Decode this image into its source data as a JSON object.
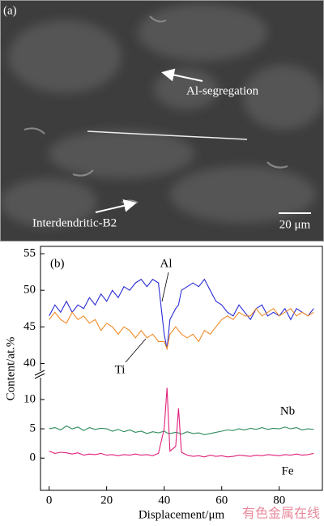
{
  "image": {
    "label": "(a)",
    "annotations": [
      "Al-segregation",
      "Interdendritic-B2"
    ],
    "scale_bar": "20 μm"
  },
  "watermark": "有色金属在线",
  "chart_data": [
    {
      "type": "line",
      "title": "(b)",
      "y_label": "Content/at.%",
      "x": [
        0,
        2,
        4,
        6,
        8,
        10,
        12,
        14,
        16,
        18,
        20,
        22,
        24,
        26,
        28,
        30,
        32,
        34,
        36,
        38,
        40,
        41,
        42,
        44,
        45,
        46,
        48,
        50,
        52,
        54,
        56,
        58,
        60,
        62,
        64,
        66,
        68,
        70,
        72,
        74,
        76,
        78,
        80,
        82,
        84,
        86,
        88,
        90,
        92
      ],
      "xlim": [
        -3,
        95
      ],
      "ylim": [
        38.5,
        56
      ],
      "yticks": [
        40,
        45,
        50,
        55
      ],
      "annotations": [
        "Al",
        "Ti"
      ],
      "series": [
        {
          "name": "Al",
          "color": "#2b2bd6",
          "values": [
            46.5,
            48,
            47,
            48.5,
            47,
            48,
            47.5,
            49,
            48,
            49.5,
            48.5,
            50,
            49,
            50.5,
            50,
            51,
            51.5,
            50.5,
            51.5,
            51,
            44,
            42,
            46,
            47.5,
            48,
            50,
            50.5,
            51,
            50.5,
            51.5,
            50,
            48.5,
            48,
            47,
            46.5,
            48,
            47,
            46,
            47.5,
            48,
            46.5,
            47,
            46.5,
            47.5,
            46,
            47.5,
            47,
            46.5,
            47.5
          ]
        },
        {
          "name": "Ti",
          "color": "#f08a24",
          "values": [
            46,
            47,
            46,
            45.5,
            47,
            46,
            46.5,
            45.5,
            46,
            44.5,
            45.5,
            45,
            44,
            45,
            44.5,
            43.5,
            44.5,
            43.5,
            44,
            43,
            43,
            42,
            44,
            45,
            44.5,
            44,
            43.5,
            44,
            43,
            44.5,
            44,
            45,
            46,
            46.5,
            46,
            47,
            46.5,
            46.5,
            47.5,
            46.5,
            47,
            47.5,
            46.5,
            47,
            47.5,
            46.5,
            47,
            46.5,
            47
          ]
        }
      ]
    },
    {
      "type": "line",
      "x_label": "Displacement/μm",
      "x": [
        0,
        2,
        4,
        6,
        8,
        10,
        12,
        14,
        16,
        18,
        20,
        22,
        24,
        26,
        28,
        30,
        32,
        34,
        36,
        38,
        40,
        41,
        42,
        44,
        45,
        46,
        48,
        50,
        52,
        54,
        56,
        58,
        60,
        62,
        64,
        66,
        68,
        70,
        72,
        74,
        76,
        78,
        80,
        82,
        84,
        86,
        88,
        90,
        92
      ],
      "xlim": [
        -3,
        95
      ],
      "ylim": [
        -5.5,
        14
      ],
      "xticks": [
        0,
        20,
        40,
        60,
        80
      ],
      "yticks": [
        0,
        5,
        10
      ],
      "annotations": [
        "Nb",
        "Fe"
      ],
      "series": [
        {
          "name": "Nb",
          "color": "#2e8b5e",
          "values": [
            5,
            5.2,
            4.8,
            5.5,
            5,
            5.3,
            4.7,
            5.2,
            4.9,
            5.1,
            5,
            4.6,
            4.9,
            4.5,
            4.8,
            4.4,
            4.6,
            4.2,
            4.5,
            4.3,
            4.6,
            4.3,
            4.2,
            4.4,
            4.3,
            4.1,
            4.5,
            4.2,
            4.3,
            4,
            4.2,
            4.4,
            4.6,
            4.8,
            4.7,
            5,
            4.8,
            5.1,
            4.9,
            5.2,
            4.9,
            5.1,
            5,
            5.3,
            5,
            5.2,
            4.8,
            5,
            4.9
          ]
        },
        {
          "name": "Fe",
          "color": "#e0207a",
          "values": [
            1.2,
            0.8,
            1,
            0.9,
            0.7,
            0.9,
            0.5,
            0.7,
            0.6,
            0.8,
            0.5,
            0.6,
            0.4,
            0.6,
            0.5,
            0.7,
            0.5,
            0.6,
            0.4,
            0.8,
            5,
            12,
            1.2,
            2,
            8.5,
            1,
            0.5,
            0.3,
            0.4,
            0.2,
            0.5,
            0.3,
            0.4,
            0.2,
            0.3,
            0.5,
            0.4,
            0.3,
            0.5,
            0.4,
            0.6,
            0.5,
            0.4,
            0.6,
            0.5,
            0.7,
            0.5,
            0.6,
            0.8
          ]
        }
      ]
    }
  ]
}
